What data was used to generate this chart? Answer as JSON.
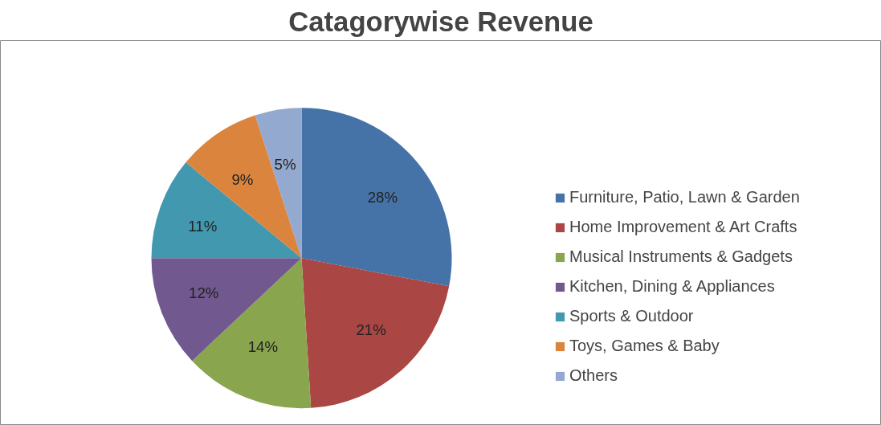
{
  "chart_data": {
    "type": "pie",
    "title": "Catagorywise Revenue",
    "categories": [
      "Furniture, Patio, Lawn & Garden",
      "Home Improvement & Art Crafts",
      "Musical Instruments & Gadgets",
      "Kitchen, Dining & Appliances",
      "Sports & Outdoor",
      "Toys, Games & Baby",
      "Others"
    ],
    "values": [
      28,
      21,
      14,
      12,
      11,
      9,
      5
    ],
    "colors": [
      "#4572a7",
      "#aa4643",
      "#89a54e",
      "#71588f",
      "#4198af",
      "#db843d",
      "#93a9cf"
    ],
    "value_labels": [
      "28%",
      "21%",
      "14%",
      "12%",
      "11%",
      "9%",
      "5%"
    ],
    "legend": "right"
  }
}
